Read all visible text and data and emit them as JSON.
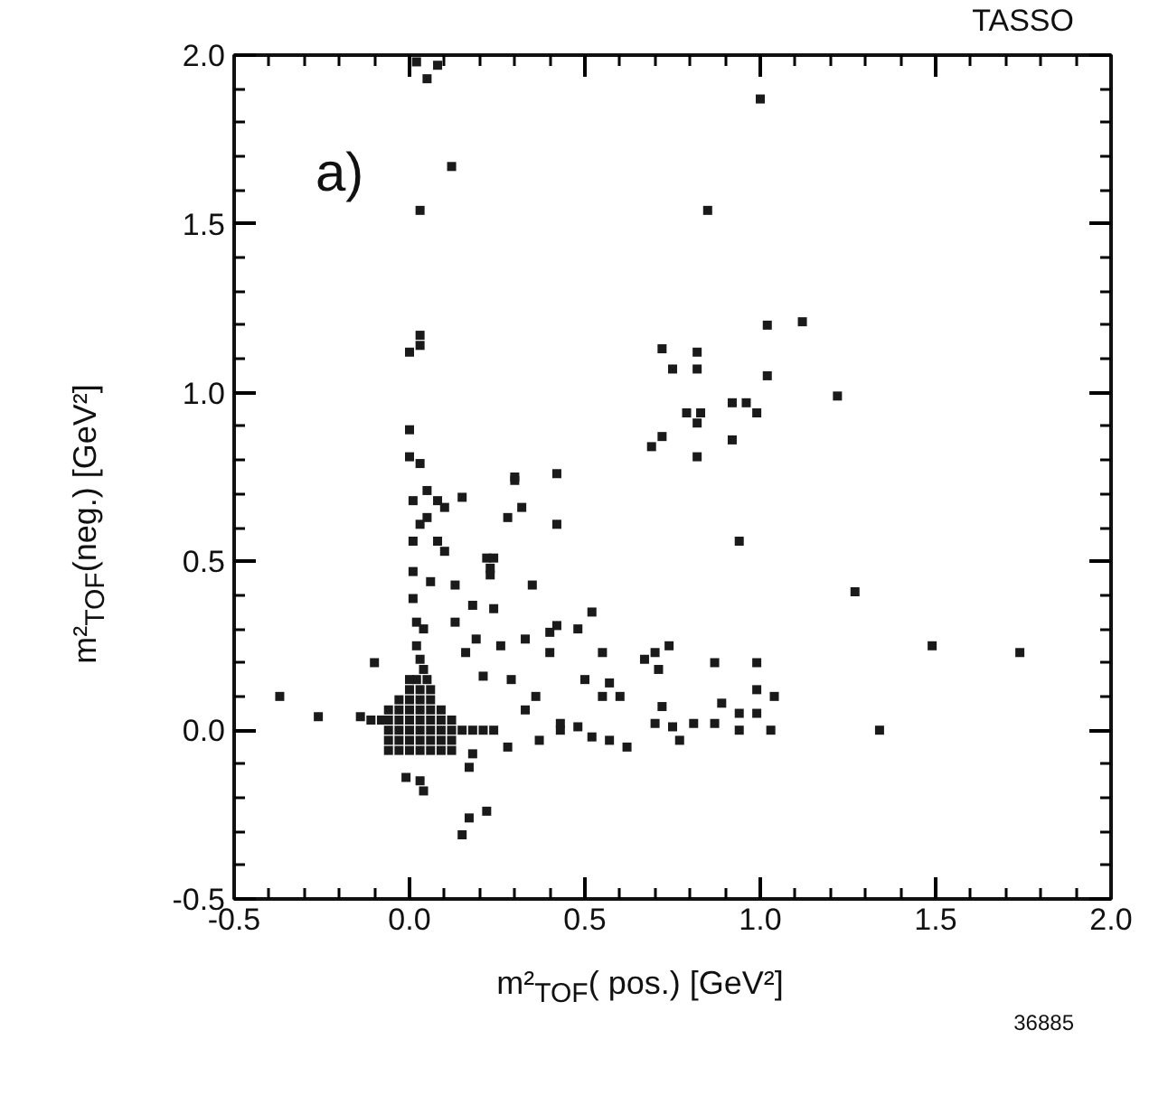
{
  "chart_data": {
    "type": "scatter",
    "xlabel": "m²$_{TOF}$( pos.) [GeV²]",
    "ylabel": "m²$_{TOF}$(neg.) [GeV²]",
    "annotations": [
      "a)",
      "TASSO",
      "36885"
    ],
    "xlim": [
      -0.5,
      2.0
    ],
    "ylim": [
      -0.5,
      2.0
    ],
    "xticks": [
      {
        "value": -0.5,
        "label": "-0.5"
      },
      {
        "value": -0.4,
        "label": null
      },
      {
        "value": -0.3,
        "label": null
      },
      {
        "value": -0.2,
        "label": null
      },
      {
        "value": -0.1,
        "label": null
      },
      {
        "value": 0.0,
        "label": "0.0"
      },
      {
        "value": 0.1,
        "label": null
      },
      {
        "value": 0.2,
        "label": null
      },
      {
        "value": 0.3,
        "label": null
      },
      {
        "value": 0.4,
        "label": null
      },
      {
        "value": 0.5,
        "label": "0.5"
      },
      {
        "value": 0.6,
        "label": null
      },
      {
        "value": 0.7,
        "label": null
      },
      {
        "value": 0.8,
        "label": null
      },
      {
        "value": 0.9,
        "label": null
      },
      {
        "value": 1.0,
        "label": "1.0"
      },
      {
        "value": 1.1,
        "label": null
      },
      {
        "value": 1.2,
        "label": null
      },
      {
        "value": 1.3,
        "label": null
      },
      {
        "value": 1.4,
        "label": null
      },
      {
        "value": 1.5,
        "label": "1.5"
      },
      {
        "value": 1.6,
        "label": null
      },
      {
        "value": 1.7,
        "label": null
      },
      {
        "value": 1.8,
        "label": null
      },
      {
        "value": 1.9,
        "label": null
      },
      {
        "value": 2.0,
        "label": "2.0"
      }
    ],
    "yticks": [
      {
        "value": -0.5,
        "label": "-0.5"
      },
      {
        "value": -0.4,
        "label": null
      },
      {
        "value": -0.3,
        "label": null
      },
      {
        "value": -0.2,
        "label": null
      },
      {
        "value": -0.1,
        "label": null
      },
      {
        "value": 0.0,
        "label": "0.0"
      },
      {
        "value": 0.1,
        "label": null
      },
      {
        "value": 0.2,
        "label": null
      },
      {
        "value": 0.3,
        "label": null
      },
      {
        "value": 0.4,
        "label": null
      },
      {
        "value": 0.5,
        "label": "0.5"
      },
      {
        "value": 0.6,
        "label": null
      },
      {
        "value": 0.7,
        "label": null
      },
      {
        "value": 0.8,
        "label": null
      },
      {
        "value": 0.9,
        "label": null
      },
      {
        "value": 1.0,
        "label": "1.0"
      },
      {
        "value": 1.1,
        "label": null
      },
      {
        "value": 1.2,
        "label": null
      },
      {
        "value": 1.3,
        "label": null
      },
      {
        "value": 1.4,
        "label": null
      },
      {
        "value": 1.5,
        "label": "1.5"
      },
      {
        "value": 1.6,
        "label": null
      },
      {
        "value": 1.7,
        "label": null
      },
      {
        "value": 1.8,
        "label": null
      },
      {
        "value": 1.9,
        "label": null
      },
      {
        "value": 2.0,
        "label": "2.0"
      }
    ],
    "grid": false,
    "marker": "square",
    "series": [
      {
        "color": "#1a1a1a",
        "x": [
          0.02,
          0.08,
          0.05,
          1.0,
          0.12,
          0.03,
          0.85,
          0.03,
          0.03,
          0.0,
          0.72,
          0.82,
          0.82,
          0.75,
          1.02,
          1.12,
          1.02,
          1.22,
          0.92,
          0.96,
          0.99,
          0.79,
          0.83,
          0.82,
          0.92,
          0.69,
          0.72,
          0.82,
          0.0,
          0.0,
          0.03,
          0.42,
          0.3,
          0.3,
          0.01,
          0.05,
          0.08,
          0.1,
          0.15,
          0.28,
          0.32,
          0.05,
          0.42,
          0.03,
          0.94,
          0.01,
          0.08,
          0.1,
          0.22,
          0.24,
          0.23,
          0.23,
          0.35,
          0.13,
          1.27,
          0.52,
          0.48,
          0.42,
          1.49,
          1.74,
          0.74,
          0.7,
          0.67,
          0.55,
          0.87,
          0.99,
          0.71,
          0.5,
          0.57,
          0.55,
          0.6,
          1.04,
          0.99,
          0.89,
          0.72,
          0.99,
          0.94,
          1.34,
          1.03,
          0.94,
          0.81,
          0.87,
          0.77,
          0.62,
          0.7,
          0.75,
          0.57,
          0.52,
          -0.37,
          -0.26,
          -0.14,
          -0.11,
          -0.1,
          0.22,
          0.17,
          0.15,
          0.04,
          -0.01,
          0.03,
          0.17,
          0.18,
          0.28,
          0.37,
          0.43,
          0.48,
          0.19,
          0.26,
          0.33,
          0.4,
          0.21,
          0.29,
          0.36,
          0.33,
          0.43,
          0.24,
          0.18,
          0.13,
          0.02,
          0.01,
          0.06,
          0.01,
          0.4,
          0.16,
          -0.06,
          -0.03,
          0.0,
          0.03,
          0.06,
          0.09,
          0.12,
          -0.06,
          -0.03,
          0.0,
          0.03,
          0.06,
          0.09,
          0.12,
          -0.06,
          -0.03,
          0.0,
          0.03,
          0.06,
          0.09,
          0.12,
          0.15,
          0.18,
          0.21,
          0.24,
          -0.06,
          -0.03,
          0.0,
          0.03,
          0.06,
          0.09,
          0.12,
          -0.06,
          -0.03,
          0.0,
          0.03,
          0.06,
          0.09,
          -0.03,
          0.0,
          0.03,
          0.06,
          0.0,
          0.03,
          0.06,
          0.02,
          0.04,
          0.03,
          0.02,
          0.04,
          -0.08,
          0.0,
          0.05
        ],
        "values": [
          1.98,
          1.97,
          1.93,
          1.87,
          1.67,
          1.54,
          1.54,
          1.17,
          1.14,
          1.12,
          1.13,
          1.12,
          1.07,
          1.07,
          1.2,
          1.21,
          1.05,
          0.99,
          0.97,
          0.97,
          0.94,
          0.94,
          0.94,
          0.91,
          0.86,
          0.84,
          0.87,
          0.81,
          0.89,
          0.81,
          0.79,
          0.76,
          0.75,
          0.74,
          0.68,
          0.71,
          0.68,
          0.66,
          0.69,
          0.63,
          0.66,
          0.63,
          0.61,
          0.61,
          0.56,
          0.56,
          0.56,
          0.53,
          0.51,
          0.51,
          0.48,
          0.46,
          0.43,
          0.43,
          0.41,
          0.35,
          0.3,
          0.31,
          0.25,
          0.23,
          0.25,
          0.23,
          0.21,
          0.23,
          0.2,
          0.2,
          0.18,
          0.15,
          0.14,
          0.1,
          0.1,
          0.1,
          0.12,
          0.08,
          0.07,
          0.05,
          0.05,
          0.0,
          0.0,
          0.0,
          0.02,
          0.02,
          -0.03,
          -0.05,
          0.02,
          0.01,
          -0.03,
          -0.02,
          0.1,
          0.04,
          0.04,
          0.03,
          0.2,
          -0.24,
          -0.26,
          -0.31,
          -0.18,
          -0.14,
          -0.15,
          -0.11,
          -0.07,
          -0.05,
          -0.03,
          0.0,
          0.01,
          0.27,
          0.25,
          0.27,
          0.23,
          0.16,
          0.15,
          0.1,
          0.06,
          0.02,
          0.36,
          0.37,
          0.32,
          0.32,
          0.39,
          0.44,
          0.47,
          0.29,
          0.23,
          -0.06,
          -0.06,
          -0.06,
          -0.06,
          -0.06,
          -0.06,
          -0.06,
          -0.03,
          -0.03,
          -0.03,
          -0.03,
          -0.03,
          -0.03,
          -0.03,
          0.0,
          0.0,
          0.0,
          0.0,
          0.0,
          0.0,
          0.0,
          0.0,
          0.0,
          0.0,
          0.0,
          0.03,
          0.03,
          0.03,
          0.03,
          0.03,
          0.03,
          0.03,
          0.06,
          0.06,
          0.06,
          0.06,
          0.06,
          0.06,
          0.09,
          0.09,
          0.09,
          0.09,
          0.12,
          0.12,
          0.12,
          0.15,
          0.18,
          0.21,
          0.25,
          0.3,
          0.03,
          0.15,
          0.15
        ]
      }
    ]
  }
}
